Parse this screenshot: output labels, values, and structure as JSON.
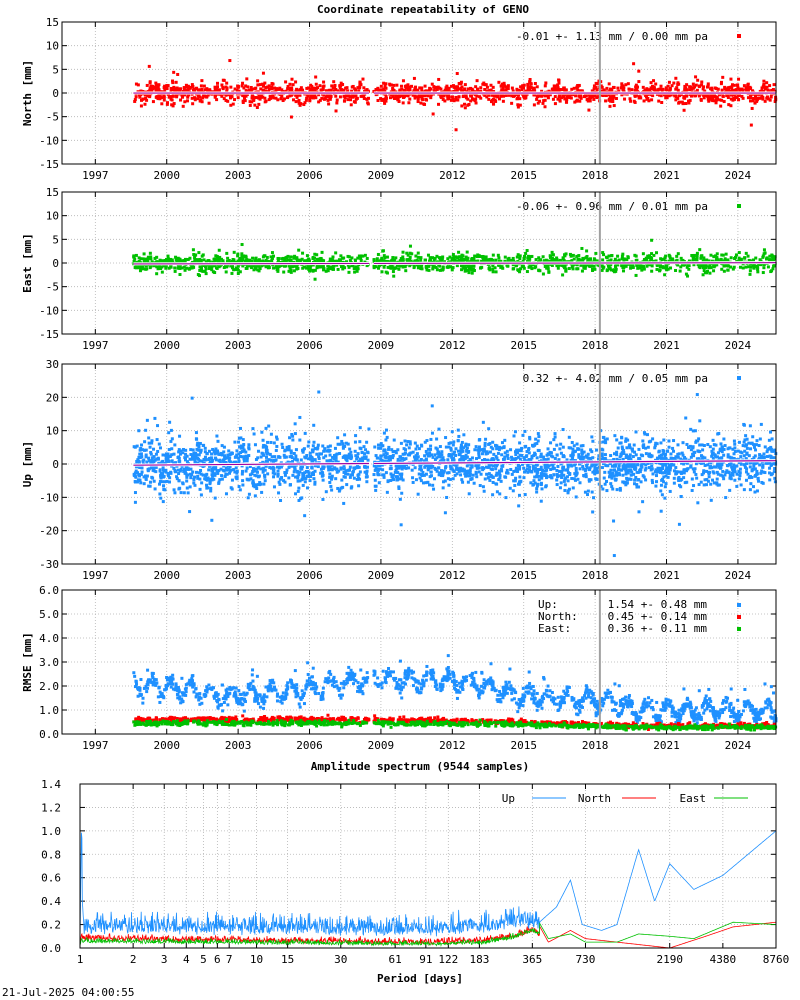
{
  "colors": {
    "north": "#ff0000",
    "east": "#00c000",
    "up": "#1e90ff",
    "mean_line": "#a000a0",
    "break_line": "#a0a0a0"
  },
  "footer": {
    "timestamp": "21-Jul-2025 04:00:55"
  },
  "chart_data": [
    {
      "id": "north",
      "type": "scatter",
      "title": "Coordinate repeatability of GENO",
      "ylabel": "North [mm]",
      "xlim": [
        1995.6,
        2025.6
      ],
      "ylim": [
        -15,
        15
      ],
      "yticks": [
        -15,
        -10,
        -5,
        0,
        5,
        10,
        15
      ],
      "xticks": [
        1997,
        2000,
        2003,
        2006,
        2009,
        2012,
        2015,
        2018,
        2021,
        2024
      ],
      "grid": true,
      "data_span": [
        1998.6,
        2025.6
      ],
      "gap": [
        2008.5,
        2008.7
      ],
      "break_year": 2018.2,
      "scatter_sigma": 1.13,
      "trend": {
        "offset": -0.01,
        "rate": 0.0
      },
      "legend": {
        "text": "-0.01 +- 1.13 mm /  0.00 mm pa",
        "position": "top-right"
      }
    },
    {
      "id": "east",
      "type": "scatter",
      "ylabel": "East [mm]",
      "xlim": [
        1995.6,
        2025.6
      ],
      "ylim": [
        -15,
        15
      ],
      "yticks": [
        -15,
        -10,
        -5,
        0,
        5,
        10,
        15
      ],
      "xticks": [
        1997,
        2000,
        2003,
        2006,
        2009,
        2012,
        2015,
        2018,
        2021,
        2024
      ],
      "grid": true,
      "data_span": [
        1998.6,
        2025.6
      ],
      "gap": [
        2008.5,
        2008.7
      ],
      "break_year": 2018.2,
      "scatter_sigma": 0.96,
      "trend": {
        "offset": -0.06,
        "rate": 0.01
      },
      "legend": {
        "text": "-0.06 +- 0.96 mm /  0.01 mm pa",
        "position": "top-right"
      }
    },
    {
      "id": "up",
      "type": "scatter",
      "ylabel": "Up [mm]",
      "xlim": [
        1995.6,
        2025.6
      ],
      "ylim": [
        -30,
        30
      ],
      "yticks": [
        -30,
        -20,
        -10,
        0,
        10,
        20,
        30
      ],
      "xticks": [
        1997,
        2000,
        2003,
        2006,
        2009,
        2012,
        2015,
        2018,
        2021,
        2024
      ],
      "grid": true,
      "data_span": [
        1998.6,
        2025.6
      ],
      "gap": [
        2008.5,
        2008.7
      ],
      "break_year": 2018.2,
      "scatter_sigma": 4.02,
      "trend": {
        "offset": 0.32,
        "rate": 0.05
      },
      "legend": {
        "text": " 0.32 +- 4.02 mm /  0.05 mm pa",
        "position": "top-right"
      }
    },
    {
      "id": "rmse",
      "type": "scatter",
      "ylabel": "RMSE [mm]",
      "xlim": [
        1995.6,
        2025.6
      ],
      "ylim": [
        0,
        6
      ],
      "yticks": [
        "0.0",
        "1.0",
        "2.0",
        "3.0",
        "4.0",
        "5.0",
        "6.0"
      ],
      "xticks": [
        1997,
        2000,
        2003,
        2006,
        2009,
        2012,
        2015,
        2018,
        2021,
        2024
      ],
      "grid": true,
      "data_span": [
        1998.6,
        2025.6
      ],
      "gap": [
        2008.5,
        2008.7
      ],
      "break_year": 2018.2,
      "series": [
        {
          "key": "up",
          "label": "Up:",
          "stats": "1.54 +- 0.48 mm",
          "levels": [
            [
              1998.6,
              2.0
            ],
            [
              2000.5,
              1.9
            ],
            [
              2002.5,
              1.5
            ],
            [
              2005.5,
              1.8
            ],
            [
              2008.6,
              2.3
            ],
            [
              2012.5,
              2.2
            ],
            [
              2014.8,
              1.6
            ],
            [
              2018.5,
              1.4
            ],
            [
              2019.5,
              1.0
            ],
            [
              2025.6,
              0.95
            ]
          ]
        },
        {
          "key": "north",
          "label": "North:",
          "stats": "0.45 +- 0.14 mm",
          "levels": [
            [
              1998.6,
              0.6
            ],
            [
              2008.6,
              0.6
            ],
            [
              2014.8,
              0.5
            ],
            [
              2019.5,
              0.35
            ],
            [
              2025.6,
              0.35
            ]
          ]
        },
        {
          "key": "east",
          "label": "East:",
          "stats": "0.36 +- 0.11 mm",
          "levels": [
            [
              1998.6,
              0.45
            ],
            [
              2008.6,
              0.45
            ],
            [
              2014.8,
              0.4
            ],
            [
              2019.5,
              0.28
            ],
            [
              2025.6,
              0.28
            ]
          ]
        }
      ],
      "legend_position": "top-right"
    },
    {
      "id": "spectrum",
      "type": "line",
      "title": "Amplitude spectrum (9544 samples)",
      "xlabel": "Period [days]",
      "xscale": "log",
      "xlim": [
        1,
        8760
      ],
      "ylim": [
        0,
        1.4
      ],
      "yticks": [
        "0.0",
        "0.2",
        "0.4",
        "0.6",
        "0.8",
        "1.0",
        "1.2",
        "1.4"
      ],
      "xticks": [
        1,
        2,
        3,
        4,
        5,
        6,
        7,
        10,
        15,
        30,
        61,
        91,
        122,
        183,
        365,
        730,
        2190,
        4380,
        8760
      ],
      "grid": true,
      "series": [
        {
          "name": "Up",
          "key": "up",
          "noise": 0.12,
          "points": [
            [
              1.0,
              0.05
            ],
            [
              1.02,
              1.07
            ],
            [
              1.05,
              0.2
            ],
            [
              100,
              0.15
            ],
            [
              200,
              0.22
            ],
            [
              300,
              0.32
            ],
            [
              365,
              0.3
            ],
            [
              400,
              0.22
            ],
            [
              500,
              0.35
            ],
            [
              600,
              0.58
            ],
            [
              700,
              0.2
            ],
            [
              900,
              0.15
            ],
            [
              1100,
              0.2
            ],
            [
              1460,
              0.84
            ],
            [
              1800,
              0.4
            ],
            [
              2190,
              0.72
            ],
            [
              3000,
              0.5
            ],
            [
              4380,
              0.62
            ],
            [
              8760,
              1.0
            ]
          ]
        },
        {
          "name": "North",
          "key": "north",
          "noise": 0.04,
          "points": [
            [
              1.0,
              0.03
            ],
            [
              1.02,
              0.12
            ],
            [
              100,
              0.03
            ],
            [
              200,
              0.08
            ],
            [
              300,
              0.18
            ],
            [
              365,
              0.3
            ],
            [
              450,
              0.05
            ],
            [
              600,
              0.15
            ],
            [
              730,
              0.08
            ],
            [
              1100,
              0.05
            ],
            [
              2190,
              0.0
            ],
            [
              3500,
              0.1
            ],
            [
              5000,
              0.18
            ],
            [
              8760,
              0.22
            ]
          ]
        },
        {
          "name": "East",
          "key": "east",
          "noise": 0.03,
          "points": [
            [
              1.0,
              0.02
            ],
            [
              1.02,
              0.08
            ],
            [
              100,
              0.02
            ],
            [
              200,
              0.06
            ],
            [
              300,
              0.18
            ],
            [
              365,
              0.32
            ],
            [
              450,
              0.08
            ],
            [
              600,
              0.12
            ],
            [
              730,
              0.05
            ],
            [
              1100,
              0.05
            ],
            [
              1460,
              0.12
            ],
            [
              2190,
              0.1
            ],
            [
              3000,
              0.08
            ],
            [
              5000,
              0.22
            ],
            [
              8760,
              0.2
            ]
          ]
        }
      ],
      "legend_position": "top-right"
    }
  ]
}
